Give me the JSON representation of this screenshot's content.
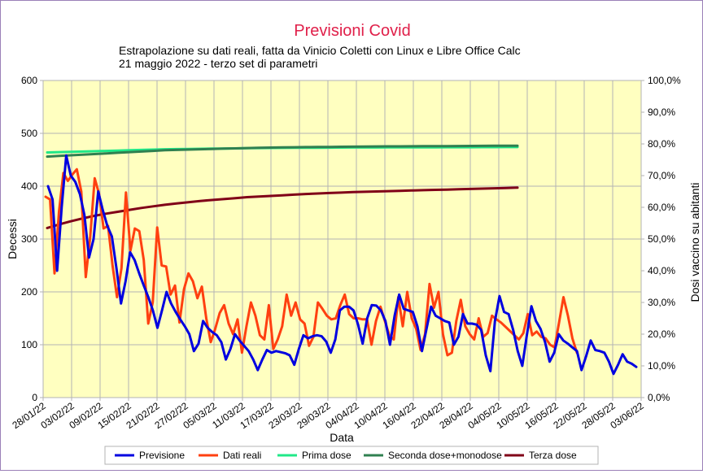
{
  "chart_data": {
    "type": "line",
    "title": "Previsioni Covid",
    "subtitle_lines": [
      "Estrapolazione su dati reali, fatta da Vinicio Coletti con Linux e Libre Office Calc",
      "21 maggio 2022 - terzo set di parametri"
    ],
    "xlabel": "Data",
    "ylabel": "Decessi",
    "y2label": "Dosi vaccino su abitanti",
    "ylim": [
      0,
      600
    ],
    "y2lim": [
      0,
      100
    ],
    "x_start": "2022-01-28",
    "x_end": "2022-06-03",
    "x_tick_labels": [
      "28/01/22",
      "03/02/22",
      "09/02/22",
      "15/02/22",
      "21/02/22",
      "27/02/22",
      "05/03/22",
      "11/03/22",
      "17/03/22",
      "23/03/22",
      "29/03/22",
      "04/04/22",
      "10/04/22",
      "16/04/22",
      "22/04/22",
      "28/04/22",
      "04/05/22",
      "10/05/22",
      "16/05/22",
      "22/05/22",
      "28/05/22",
      "03/06/22"
    ],
    "y_tick_labels": [
      "0",
      "100",
      "200",
      "300",
      "400",
      "500",
      "600"
    ],
    "y2_tick_labels": [
      "0,0%",
      "10,0%",
      "20,0%",
      "30,0%",
      "40,0%",
      "50,0%",
      "60,0%",
      "70,0%",
      "80,0%",
      "90,0%",
      "100,0%"
    ],
    "grid": true,
    "legend_position": "bottom",
    "background_color": "#ffffc0",
    "series": [
      {
        "name": "Previsione",
        "axis": "left",
        "color": "#0000e0",
        "values": [
          400,
          375,
          240,
          360,
          458,
          420,
          408,
          385,
          345,
          265,
          300,
          390,
          355,
          325,
          305,
          245,
          178,
          220,
          275,
          260,
          235,
          212,
          190,
          165,
          132,
          165,
          200,
          178,
          162,
          148,
          135,
          120,
          88,
          102,
          145,
          132,
          124,
          118,
          105,
          72,
          92,
          120,
          108,
          98,
          88,
          72,
          52,
          72,
          90,
          85,
          88,
          86,
          84,
          80,
          62,
          92,
          118,
          112,
          116,
          118,
          116,
          106,
          85,
          110,
          165,
          172,
          172,
          165,
          138,
          102,
          150,
          175,
          174,
          165,
          145,
          100,
          155,
          195,
          168,
          165,
          162,
          135,
          88,
          130,
          172,
          155,
          150,
          145,
          142,
          100,
          115,
          158,
          140,
          140,
          138,
          128,
          80,
          50,
          145,
          192,
          162,
          158,
          128,
          88,
          60,
          118,
          173,
          145,
          130,
          105,
          68,
          85,
          120,
          108,
          102,
          95,
          88,
          52,
          78,
          108,
          90,
          88,
          85,
          68,
          45,
          62,
          82,
          68,
          64,
          58
        ]
      },
      {
        "name": "Dati reali",
        "axis": "left",
        "color": "#ff4010",
        "values": [
          380,
          375,
          235,
          352,
          425,
          410,
          422,
          432,
          390,
          228,
          305,
          415,
          385,
          320,
          325,
          250,
          190,
          245,
          388,
          278,
          320,
          315,
          260,
          140,
          180,
          322,
          250,
          248,
          195,
          212,
          142,
          205,
          235,
          220,
          188,
          210,
          150,
          105,
          130,
          160,
          175,
          140,
          120,
          148,
          85,
          135,
          180,
          155,
          118,
          110,
          175,
          92,
          110,
          135,
          195,
          155,
          180,
          148,
          140,
          98,
          115,
          180,
          168,
          155,
          148,
          150,
          175,
          195,
          158,
          150,
          150,
          148,
          148,
          100,
          145,
          172,
          145,
          118,
          110,
          190,
          135,
          200,
          150,
          130,
          90,
          120,
          215,
          170,
          200,
          120,
          80,
          85,
          145,
          185,
          135,
          120,
          110,
          150,
          115,
          122,
          155,
          148,
          142,
          134,
          126,
          118,
          110,
          122,
          158,
          118,
          125,
          115,
          112,
          100,
          95,
          142,
          190,
          155,
          112,
          85
        ]
      },
      {
        "name": "Prima dose",
        "axis": "right",
        "color": "#20e888",
        "values": [
          77.3,
          77.4,
          77.5,
          77.6,
          77.7,
          77.8,
          77.9,
          78.0,
          78.1,
          78.2,
          78.3,
          78.35,
          78.4,
          78.45,
          78.5,
          78.55,
          78.6,
          78.65,
          78.7,
          78.72,
          78.74,
          78.76,
          78.78,
          78.8,
          78.82,
          78.84,
          78.86,
          78.87,
          78.88,
          78.89,
          78.9,
          78.91,
          78.92,
          78.93,
          78.94,
          78.95,
          78.96,
          78.97,
          78.98,
          78.99,
          79.0
        ]
      },
      {
        "name": "Seconda dose+monodose",
        "axis": "right",
        "color": "#308050",
        "values": [
          76.0,
          76.2,
          76.4,
          76.6,
          76.8,
          77.0,
          77.2,
          77.4,
          77.6,
          77.8,
          78.0,
          78.1,
          78.2,
          78.3,
          78.4,
          78.5,
          78.6,
          78.7,
          78.8,
          78.85,
          78.9,
          78.95,
          79.0,
          79.03,
          79.06,
          79.1,
          79.13,
          79.16,
          79.2,
          79.22,
          79.24,
          79.26,
          79.28,
          79.3,
          79.32,
          79.34,
          79.36,
          79.38,
          79.4,
          79.42,
          79.44
        ]
      },
      {
        "name": "Terza dose",
        "axis": "right",
        "color": "#800018",
        "values": [
          53.5,
          54.6,
          55.6,
          56.5,
          57.3,
          58.0,
          58.6,
          59.2,
          59.8,
          60.3,
          60.8,
          61.2,
          61.6,
          62.0,
          62.3,
          62.6,
          62.9,
          63.2,
          63.4,
          63.6,
          63.8,
          64.0,
          64.2,
          64.35,
          64.5,
          64.65,
          64.8,
          64.9,
          65.0,
          65.1,
          65.2,
          65.3,
          65.4,
          65.5,
          65.6,
          65.7,
          65.8,
          65.9,
          66.0,
          66.1,
          66.2
        ]
      }
    ]
  }
}
